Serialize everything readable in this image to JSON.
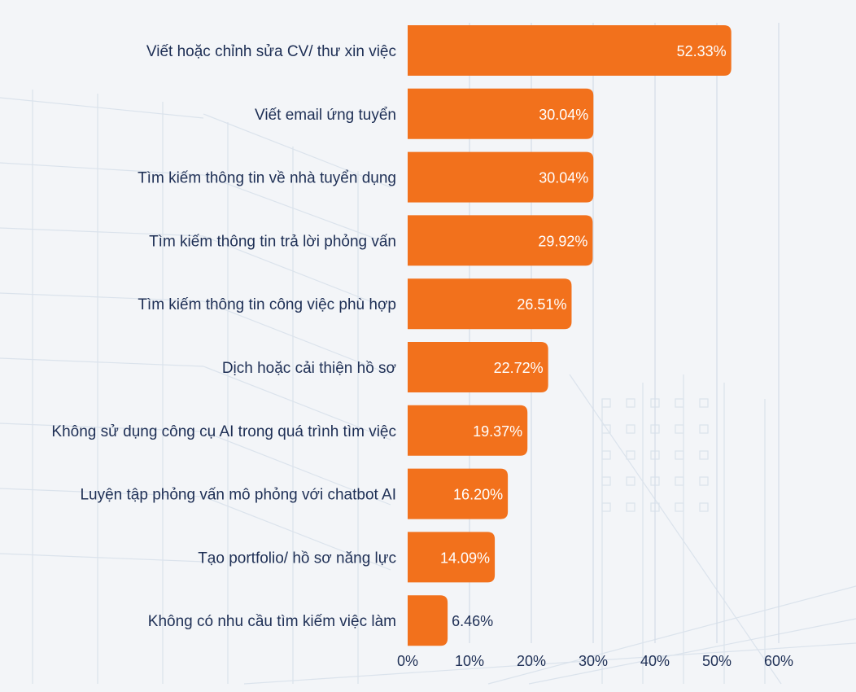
{
  "chart_data": {
    "type": "bar",
    "orientation": "horizontal",
    "categories": [
      "Viết hoặc chỉnh sửa CV/ thư xin việc",
      "Viết email ứng tuyển",
      "Tìm kiếm thông tin về nhà tuyển dụng",
      "Tìm kiếm thông tin trả lời phỏng vấn",
      "Tìm kiếm thông tin công việc phù hợp",
      "Dịch hoặc cải thiện hồ sơ",
      "Không sử dụng công cụ AI trong quá trình tìm việc",
      "Luyện tập phỏng vấn mô phỏng với chatbot AI",
      "Tạo portfolio/ hồ sơ năng lực",
      "Không có nhu cầu tìm kiếm việc làm"
    ],
    "values": [
      52.33,
      30.04,
      30.04,
      29.92,
      26.51,
      22.72,
      19.37,
      16.2,
      14.09,
      6.46
    ],
    "value_labels": [
      "52.33%",
      "30.04%",
      "30.04%",
      "29.92%",
      "26.51%",
      "22.72%",
      "19.37%",
      "16.20%",
      "14.09%",
      "6.46%"
    ],
    "xlim": [
      0,
      60
    ],
    "xticks": [
      0,
      10,
      20,
      30,
      40,
      50,
      60
    ],
    "xtick_labels": [
      "0%",
      "10%",
      "20%",
      "30%",
      "40%",
      "50%",
      "60%"
    ],
    "grid": true,
    "colors": {
      "bar": "#f2711c",
      "value_text_inside": "#ffffff",
      "value_text_outside": "#1e2f55",
      "category_text": "#1e2f55",
      "grid": "#d4dde8",
      "background": "#f3f5f8"
    }
  }
}
